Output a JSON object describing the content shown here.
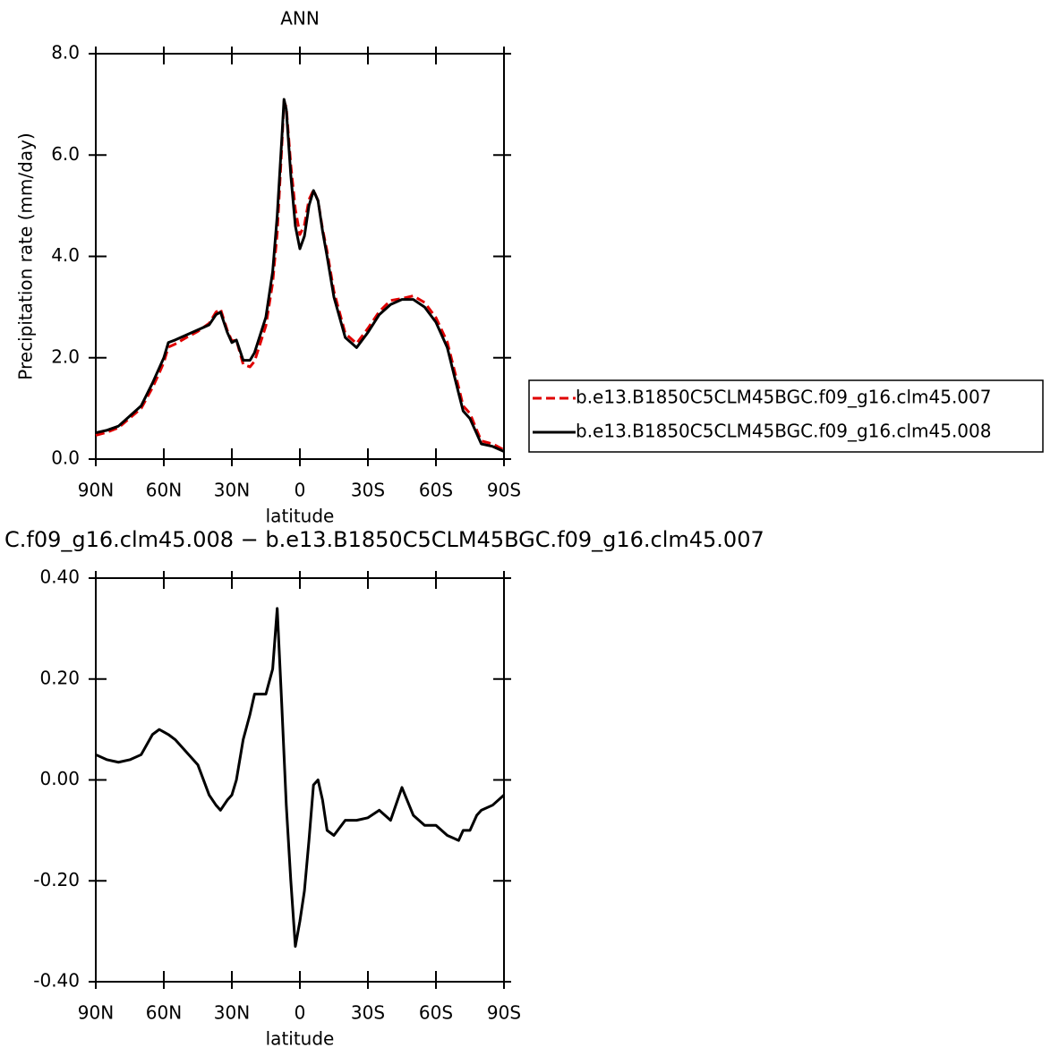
{
  "chart_data": [
    {
      "type": "line",
      "title": "ANN",
      "xlabel": "latitude",
      "ylabel": "Precipitation rate (mm/day)",
      "x": [
        90,
        85,
        80,
        75,
        70,
        65,
        62,
        60,
        58,
        55,
        50,
        45,
        40,
        37,
        35,
        32,
        30,
        28,
        25,
        22,
        20,
        15,
        12,
        10,
        8,
        7,
        6,
        4,
        2,
        0,
        -2,
        -4,
        -6,
        -8,
        -10,
        -12,
        -15,
        -20,
        -25,
        -30,
        -35,
        -40,
        -45,
        -50,
        -55,
        -60,
        -65,
        -70,
        -72,
        -75,
        -78,
        -80,
        -85,
        -90
      ],
      "series": [
        {
          "name": "b.e13.B1850C5CLM45BGC.f09_g16.clm45.007",
          "color": "#e00000",
          "style": "dashed",
          "values": [
            0.47,
            0.53,
            0.62,
            0.81,
            1.0,
            1.41,
            1.7,
            1.91,
            2.21,
            2.27,
            2.4,
            2.52,
            2.68,
            2.9,
            2.96,
            2.54,
            2.33,
            2.35,
            1.87,
            1.82,
            1.93,
            2.63,
            3.48,
            4.46,
            6.15,
            7.05,
            6.95,
            5.8,
            4.93,
            4.43,
            4.62,
            5.12,
            5.31,
            5.1,
            4.54,
            4.1,
            3.31,
            2.48,
            2.28,
            2.58,
            2.91,
            3.13,
            3.17,
            3.22,
            3.09,
            2.79,
            2.31,
            1.42,
            1.05,
            0.9,
            0.57,
            0.36,
            0.3,
            0.18
          ]
        },
        {
          "name": "b.e13.B1850C5CLM45BGC.f09_g16.clm45.008",
          "color": "#000000",
          "style": "solid",
          "values": [
            0.52,
            0.57,
            0.65,
            0.85,
            1.05,
            1.5,
            1.8,
            2.0,
            2.3,
            2.35,
            2.45,
            2.55,
            2.65,
            2.85,
            2.9,
            2.5,
            2.3,
            2.35,
            1.95,
            1.95,
            2.1,
            2.8,
            3.7,
            4.8,
            6.3,
            7.1,
            6.9,
            5.6,
            4.6,
            4.15,
            4.4,
            5.0,
            5.3,
            5.1,
            4.5,
            4.0,
            3.2,
            2.4,
            2.2,
            2.5,
            2.85,
            3.05,
            3.15,
            3.15,
            3.0,
            2.7,
            2.2,
            1.3,
            0.95,
            0.8,
            0.5,
            0.3,
            0.25,
            0.15
          ]
        }
      ],
      "xlim": [
        90,
        -90
      ],
      "xticks": [
        {
          "value": 90,
          "label": "90N"
        },
        {
          "value": 60,
          "label": "60N"
        },
        {
          "value": 30,
          "label": "30N"
        },
        0,
        {
          "value": -30,
          "label": "30S"
        },
        {
          "value": -60,
          "label": "60S"
        },
        {
          "value": -90,
          "label": "90S"
        }
      ],
      "ylim": [
        0,
        8
      ],
      "yticks": [
        {
          "value": 0,
          "label": "0.0"
        },
        {
          "value": 2,
          "label": "2.0"
        },
        {
          "value": 4,
          "label": "4.0"
        },
        {
          "value": 6,
          "label": "6.0"
        },
        {
          "value": 8,
          "label": "8.0"
        }
      ],
      "legend": "right"
    },
    {
      "type": "line",
      "title": "C.f09_g16.clm45.008 − b.e13.B1850C5CLM45BGC.f09_g16.clm45.007",
      "xlabel": "latitude",
      "x": [
        90,
        85,
        80,
        75,
        70,
        65,
        62,
        60,
        58,
        55,
        50,
        45,
        40,
        37,
        35,
        32,
        30,
        28,
        25,
        22,
        20,
        15,
        12,
        10,
        8,
        7,
        6,
        4,
        2,
        0,
        -2,
        -4,
        -6,
        -8,
        -10,
        -12,
        -15,
        -20,
        -25,
        -30,
        -35,
        -40,
        -45,
        -50,
        -55,
        -60,
        -65,
        -70,
        -72,
        -75,
        -78,
        -80,
        -85,
        -90
      ],
      "series": [
        {
          "color": "#000000",
          "style": "solid",
          "values": [
            0.05,
            0.04,
            0.035,
            0.04,
            0.05,
            0.09,
            0.1,
            0.095,
            0.09,
            0.08,
            0.055,
            0.03,
            -0.03,
            -0.05,
            -0.06,
            -0.04,
            -0.03,
            0,
            0.08,
            0.13,
            0.17,
            0.17,
            0.22,
            0.34,
            0.15,
            0.05,
            -0.05,
            -0.2,
            -0.33,
            -0.28,
            -0.22,
            -0.12,
            -0.01,
            0,
            -0.04,
            -0.1,
            -0.11,
            -0.08,
            -0.08,
            -0.075,
            -0.06,
            -0.08,
            -0.015,
            -0.07,
            -0.09,
            -0.09,
            -0.11,
            -0.12,
            -0.1,
            -0.1,
            -0.07,
            -0.06,
            -0.05,
            -0.03
          ]
        }
      ],
      "xlim": [
        90,
        -90
      ],
      "xticks": [
        {
          "value": 90,
          "label": "90N"
        },
        {
          "value": 60,
          "label": "60N"
        },
        {
          "value": 30,
          "label": "30N"
        },
        0,
        {
          "value": -30,
          "label": "30S"
        },
        {
          "value": -60,
          "label": "60S"
        },
        {
          "value": -90,
          "label": "90S"
        }
      ],
      "ylim": [
        -0.4,
        0.4
      ],
      "yticks": [
        {
          "value": -0.4,
          "label": "-0.40"
        },
        {
          "value": -0.2,
          "label": "-0.20"
        },
        {
          "value": 0,
          "label": "0.00"
        },
        {
          "value": 0.2,
          "label": "0.20"
        },
        {
          "value": 0.4,
          "label": "0.40"
        }
      ]
    }
  ]
}
